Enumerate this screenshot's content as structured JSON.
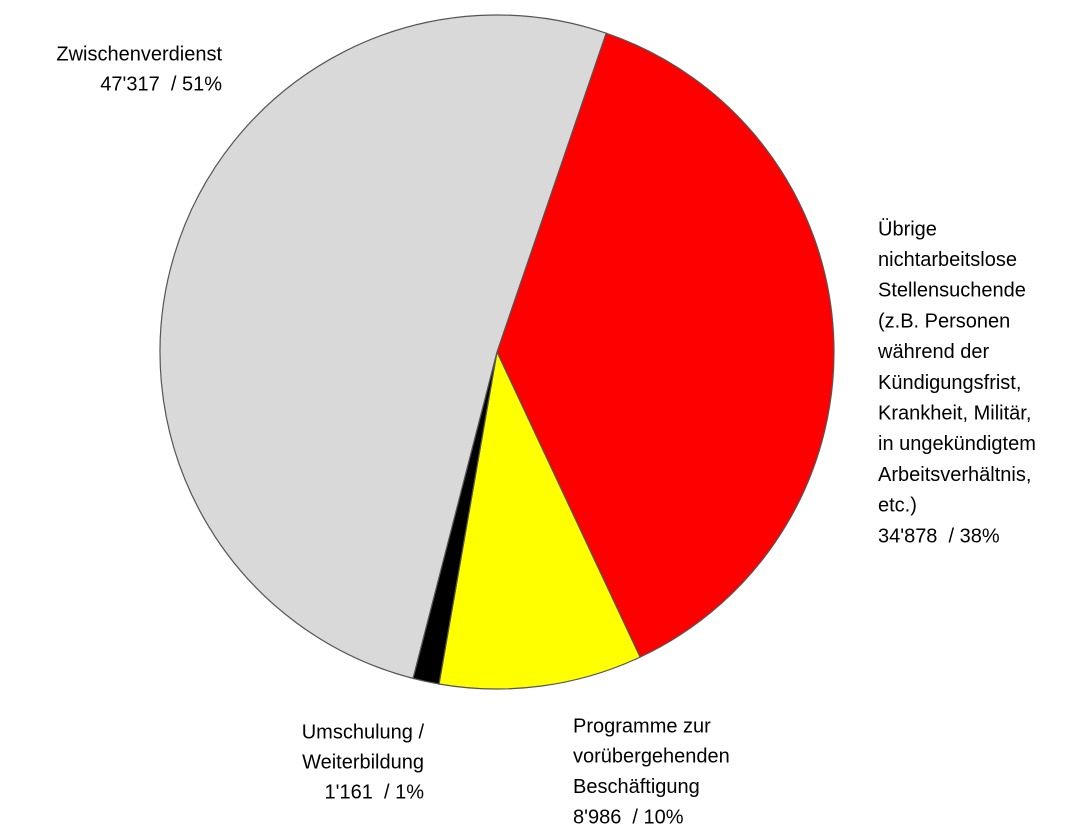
{
  "chart_data": {
    "type": "pie",
    "categories": [
      [
        "Übrige",
        "nichtarbeitslose",
        "Stellensuchende",
        "(z.B. Personen",
        "während der",
        "Kündigungsfrist,",
        "Krankheit, Militär,",
        "in ungekündigtem",
        "Arbeitsverhältnis,",
        "etc.)"
      ],
      [
        "Programme zur",
        "vorübergehenden",
        "Beschäftigung"
      ],
      [
        "Umschulung /",
        "Weiterbildung"
      ],
      [
        "Zwischenverdienst"
      ]
    ],
    "values": [
      34878,
      8986,
      1161,
      47317
    ],
    "value_labels": [
      "34'878  / 38%",
      "8'986  / 10%",
      "1'161  / 1%",
      "47'317  / 51%"
    ],
    "colors": [
      "#ff0000",
      "#ffff00",
      "#000000",
      "#d9d9d9"
    ]
  }
}
